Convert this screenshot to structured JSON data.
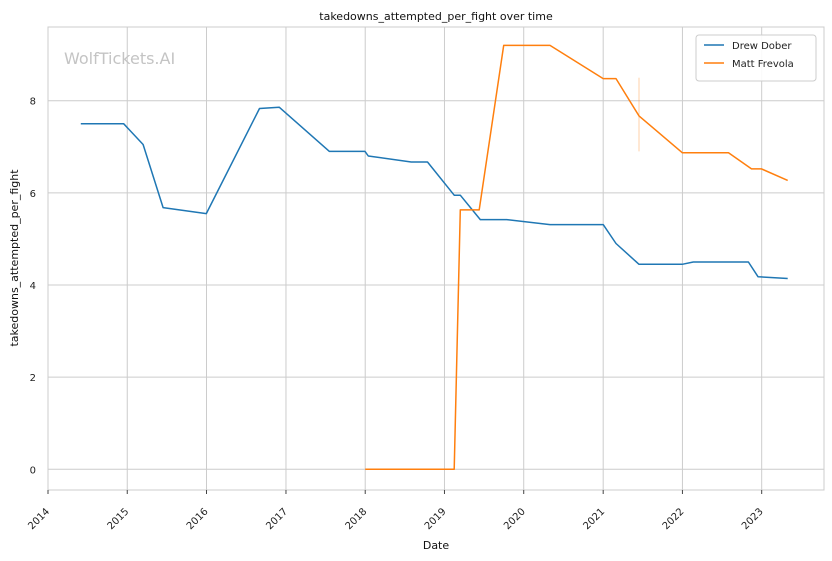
{
  "watermark": "WolfTickets.AI",
  "chart_data": {
    "type": "line",
    "title": "takedowns_attempted_per_fight over time",
    "xlabel": "Date",
    "ylabel": "takedowns_attempted_per_fight",
    "xlim": [
      "2014-01-01",
      "2023-10-15"
    ],
    "ylim": [
      -0.45,
      9.6
    ],
    "x_ticks": [
      "2014-01-01",
      "2015-01-01",
      "2016-01-01",
      "2017-01-01",
      "2018-01-01",
      "2019-01-01",
      "2020-01-01",
      "2021-01-01",
      "2022-01-01",
      "2023-01-01"
    ],
    "x_tick_labels": [
      "2014",
      "2015",
      "2016",
      "2017",
      "2018",
      "2019",
      "2020",
      "2021",
      "2022",
      "2023"
    ],
    "y_ticks": [
      0,
      2,
      4,
      6,
      8
    ],
    "y_tick_labels": [
      "0",
      "2",
      "4",
      "6",
      "8"
    ],
    "grid": true,
    "legend_position": "top-right",
    "series": [
      {
        "name": "Drew Dober",
        "color": "#1f77b4",
        "points": [
          [
            "2014-06-01",
            7.5
          ],
          [
            "2014-12-15",
            7.5
          ],
          [
            "2015-03-15",
            7.05
          ],
          [
            "2015-06-15",
            5.68
          ],
          [
            "2015-12-31",
            5.55
          ],
          [
            "2016-09-01",
            7.83
          ],
          [
            "2016-12-01",
            7.86
          ],
          [
            "2017-07-20",
            6.9
          ],
          [
            "2017-12-31",
            6.9
          ],
          [
            "2018-01-15",
            6.8
          ],
          [
            "2018-08-01",
            6.67
          ],
          [
            "2018-10-15",
            6.67
          ],
          [
            "2019-02-15",
            5.95
          ],
          [
            "2019-03-15",
            5.95
          ],
          [
            "2019-06-15",
            5.42
          ],
          [
            "2019-10-15",
            5.42
          ],
          [
            "2020-05-01",
            5.31
          ],
          [
            "2021-01-01",
            5.31
          ],
          [
            "2021-03-01",
            4.9
          ],
          [
            "2021-06-15",
            4.45
          ],
          [
            "2021-12-31",
            4.45
          ],
          [
            "2022-02-20",
            4.5
          ],
          [
            "2022-11-01",
            4.5
          ],
          [
            "2022-12-15",
            4.18
          ],
          [
            "2023-05-01",
            4.14
          ]
        ]
      },
      {
        "name": "Matt Frevola",
        "color": "#ff7f0e",
        "points": [
          [
            "2018-01-01",
            0.0
          ],
          [
            "2019-02-15",
            0.0
          ],
          [
            "2019-03-15",
            5.63
          ],
          [
            "2019-06-10",
            5.63
          ],
          [
            "2019-10-01",
            9.2
          ],
          [
            "2020-05-01",
            9.2
          ],
          [
            "2021-01-01",
            8.48
          ],
          [
            "2021-03-01",
            8.48
          ],
          [
            "2021-06-15",
            7.67
          ],
          [
            "2022-01-01",
            6.87
          ],
          [
            "2022-08-01",
            6.87
          ],
          [
            "2022-11-15",
            6.52
          ],
          [
            "2022-12-31",
            6.52
          ],
          [
            "2023-05-01",
            6.27
          ]
        ]
      }
    ],
    "annotations": [
      {
        "type": "vline",
        "x": "2021-06-15",
        "y_range": [
          6.9,
          8.5
        ],
        "color": "#ff7f0e"
      }
    ]
  }
}
